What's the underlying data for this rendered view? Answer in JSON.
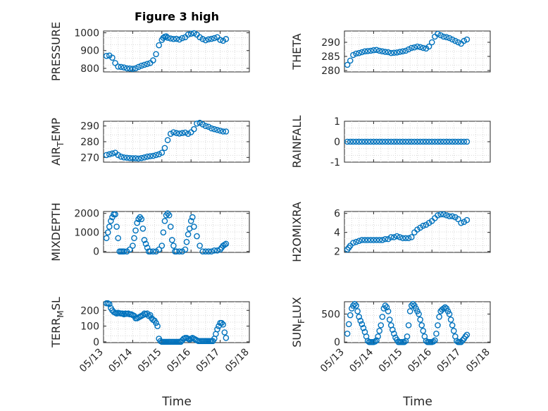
{
  "title": "Figure 3 high",
  "xlabel": "Time",
  "x_tick_labels": [
    "05/13",
    "05/14",
    "05/15",
    "05/16",
    "05/17",
    "05/18"
  ],
  "marker_color": "#0072BD",
  "chart_data": [
    {
      "type": "scatter",
      "ylabel": "PRESSURE",
      "ylabel_sub": null,
      "xlim": [
        0,
        5
      ],
      "ylim": [
        780,
        1010
      ],
      "yticks": [
        800,
        900,
        1000
      ],
      "ytick_labels": [
        "800",
        "900",
        "1000"
      ],
      "x": [
        0.1,
        0.2,
        0.3,
        0.4,
        0.5,
        0.6,
        0.7,
        0.8,
        0.9,
        1.0,
        1.1,
        1.2,
        1.3,
        1.4,
        1.5,
        1.6,
        1.7,
        1.8,
        1.9,
        2.0,
        2.05,
        2.1,
        2.15,
        2.2,
        2.3,
        2.4,
        2.5,
        2.6,
        2.7,
        2.8,
        2.9,
        3.0,
        3.1,
        3.2,
        3.3,
        3.4,
        3.5,
        3.6,
        3.7,
        3.8,
        3.9,
        4.0,
        4.1,
        4.2
      ],
      "y": [
        870,
        872,
        860,
        830,
        810,
        808,
        805,
        800,
        799,
        797,
        800,
        808,
        815,
        820,
        825,
        830,
        845,
        880,
        930,
        960,
        972,
        978,
        980,
        972,
        968,
        965,
        966,
        962,
        970,
        975,
        990,
        995,
        998,
        990,
        975,
        965,
        958,
        963,
        966,
        970,
        975,
        960,
        955,
        965
      ]
    },
    {
      "type": "scatter",
      "ylabel": "THETA",
      "ylabel_sub": null,
      "xlim": [
        0,
        5
      ],
      "ylim": [
        279.5,
        294
      ],
      "yticks": [
        280,
        285,
        290
      ],
      "ytick_labels": [
        "280",
        "285",
        "290"
      ],
      "x": [
        0.1,
        0.2,
        0.3,
        0.4,
        0.5,
        0.6,
        0.7,
        0.8,
        0.9,
        1.0,
        1.1,
        1.2,
        1.3,
        1.4,
        1.5,
        1.6,
        1.7,
        1.8,
        1.9,
        2.0,
        2.1,
        2.2,
        2.3,
        2.4,
        2.5,
        2.6,
        2.7,
        2.8,
        2.9,
        3.0,
        3.1,
        3.2,
        3.3,
        3.4,
        3.5,
        3.6,
        3.7,
        3.8,
        3.9,
        4.0,
        4.1,
        4.2
      ],
      "y": [
        282.0,
        283.5,
        285.5,
        286.0,
        286.2,
        286.5,
        286.8,
        286.9,
        287.0,
        287.2,
        287.3,
        287.0,
        286.8,
        286.6,
        286.5,
        286.2,
        286.3,
        286.4,
        286.6,
        286.8,
        287.0,
        287.5,
        288.0,
        288.2,
        288.5,
        288.3,
        288.0,
        287.8,
        288.5,
        290.0,
        292.0,
        293.0,
        292.5,
        292.0,
        291.8,
        291.5,
        291.0,
        290.5,
        290.0,
        289.5,
        290.5,
        291.0
      ]
    },
    {
      "type": "scatter",
      "ylabel": "AIR",
      "ylabel_sub": "T",
      "ylabel_suffix": "EMP",
      "xlim": [
        0,
        5
      ],
      "ylim": [
        267,
        293
      ],
      "yticks": [
        270,
        280,
        290
      ],
      "ytick_labels": [
        "270",
        "280",
        "290"
      ],
      "x": [
        0.1,
        0.2,
        0.3,
        0.4,
        0.5,
        0.6,
        0.7,
        0.8,
        0.9,
        1.0,
        1.1,
        1.2,
        1.3,
        1.4,
        1.5,
        1.6,
        1.7,
        1.8,
        1.9,
        2.0,
        2.1,
        2.2,
        2.3,
        2.4,
        2.5,
        2.6,
        2.7,
        2.8,
        2.9,
        3.0,
        3.1,
        3.2,
        3.3,
        3.4,
        3.5,
        3.6,
        3.7,
        3.8,
        3.9,
        4.0,
        4.1,
        4.2
      ],
      "y": [
        271.5,
        272.0,
        272.5,
        273.0,
        271.5,
        270.5,
        270.0,
        269.8,
        269.6,
        269.5,
        269.5,
        269.3,
        269.6,
        270.0,
        270.5,
        270.8,
        271.0,
        271.5,
        272.0,
        273.0,
        276.0,
        281.0,
        285.0,
        286.0,
        285.5,
        285.2,
        285.5,
        285.8,
        285.0,
        286.0,
        288.0,
        291.5,
        292.0,
        291.0,
        290.0,
        289.5,
        288.5,
        288.0,
        287.5,
        287.0,
        286.5,
        286.5
      ]
    },
    {
      "type": "scatter",
      "ylabel": "RAINFALL",
      "ylabel_sub": null,
      "xlim": [
        0,
        5
      ],
      "ylim": [
        -1,
        1
      ],
      "yticks": [
        -1,
        0,
        1
      ],
      "ytick_labels": [
        "-1",
        "0",
        "1"
      ],
      "x": [
        0.1,
        0.2,
        0.3,
        0.4,
        0.5,
        0.6,
        0.7,
        0.8,
        0.9,
        1.0,
        1.1,
        1.2,
        1.3,
        1.4,
        1.5,
        1.6,
        1.7,
        1.8,
        1.9,
        2.0,
        2.1,
        2.2,
        2.3,
        2.4,
        2.5,
        2.6,
        2.7,
        2.8,
        2.9,
        3.0,
        3.1,
        3.2,
        3.3,
        3.4,
        3.5,
        3.6,
        3.7,
        3.8,
        3.9,
        4.0,
        4.1,
        4.2
      ],
      "y": [
        0,
        0,
        0,
        0,
        0,
        0,
        0,
        0,
        0,
        0,
        0,
        0,
        0,
        0,
        0,
        0,
        0,
        0,
        0,
        0,
        0,
        0,
        0,
        0,
        0,
        0,
        0,
        0,
        0,
        0,
        0,
        0,
        0,
        0,
        0,
        0,
        0,
        0,
        0,
        0,
        0,
        0
      ]
    },
    {
      "type": "scatter",
      "ylabel": "MIXDEPTH",
      "ylabel_sub": null,
      "xlim": [
        0,
        5
      ],
      "ylim": [
        -50,
        2100
      ],
      "yticks": [
        0,
        1000,
        2000
      ],
      "ytick_labels": [
        "0",
        "1000",
        "2000"
      ],
      "x": [
        0.1,
        0.15,
        0.2,
        0.25,
        0.3,
        0.35,
        0.4,
        0.45,
        0.5,
        0.55,
        0.6,
        0.65,
        0.7,
        0.8,
        0.9,
        1.0,
        1.05,
        1.1,
        1.15,
        1.2,
        1.25,
        1.3,
        1.35,
        1.4,
        1.45,
        1.5,
        1.55,
        1.6,
        1.7,
        1.8,
        1.9,
        2.0,
        2.05,
        2.1,
        2.15,
        2.2,
        2.25,
        2.3,
        2.35,
        2.4,
        2.45,
        2.5,
        2.6,
        2.7,
        2.8,
        2.85,
        2.9,
        2.95,
        3.0,
        3.05,
        3.1,
        3.2,
        3.3,
        3.4,
        3.5,
        3.6,
        3.7,
        3.8,
        3.9,
        4.0,
        4.05,
        4.1,
        4.15,
        4.2
      ],
      "y": [
        700,
        1000,
        1300,
        1600,
        1800,
        1950,
        1950,
        1300,
        700,
        0,
        0,
        0,
        0,
        0,
        100,
        300,
        700,
        1100,
        1500,
        1700,
        1800,
        1700,
        1200,
        600,
        400,
        200,
        0,
        0,
        0,
        0,
        100,
        300,
        1000,
        1600,
        1900,
        2000,
        1900,
        1300,
        600,
        300,
        0,
        0,
        0,
        0,
        100,
        500,
        900,
        1200,
        1600,
        1800,
        1300,
        800,
        300,
        0,
        0,
        0,
        0,
        50,
        50,
        100,
        200,
        300,
        350,
        400
      ]
    },
    {
      "type": "scatter",
      "ylabel": "H2OMIXRA",
      "ylabel_sub": null,
      "xlim": [
        0,
        5
      ],
      "ylim": [
        1.9,
        6.2
      ],
      "yticks": [
        2,
        4,
        6
      ],
      "ytick_labels": [
        "2",
        "4",
        "6"
      ],
      "x": [
        0.1,
        0.15,
        0.2,
        0.3,
        0.4,
        0.5,
        0.6,
        0.7,
        0.8,
        0.9,
        1.0,
        1.1,
        1.2,
        1.3,
        1.4,
        1.5,
        1.6,
        1.7,
        1.8,
        1.9,
        2.0,
        2.1,
        2.2,
        2.3,
        2.4,
        2.5,
        2.6,
        2.7,
        2.8,
        2.9,
        3.0,
        3.1,
        3.2,
        3.3,
        3.4,
        3.5,
        3.6,
        3.7,
        3.8,
        3.9,
        4.0,
        4.1,
        4.2
      ],
      "y": [
        2.2,
        2.4,
        2.6,
        2.9,
        3.0,
        3.1,
        3.2,
        3.2,
        3.2,
        3.2,
        3.2,
        3.2,
        3.2,
        3.2,
        3.3,
        3.3,
        3.5,
        3.5,
        3.6,
        3.5,
        3.4,
        3.4,
        3.4,
        3.5,
        4.0,
        4.3,
        4.5,
        4.7,
        4.8,
        5.0,
        5.2,
        5.5,
        5.8,
        5.9,
        5.9,
        5.8,
        5.7,
        5.7,
        5.6,
        5.4,
        5.0,
        5.1,
        5.3
      ]
    },
    {
      "type": "scatter",
      "ylabel": "TERR",
      "ylabel_sub": "M",
      "ylabel_suffix": "SL",
      "xlim": [
        0,
        5
      ],
      "ylim": [
        -5,
        255
      ],
      "yticks": [
        0,
        100,
        200
      ],
      "ytick_labels": [
        "0",
        "100",
        "200"
      ],
      "x": [
        0.1,
        0.15,
        0.2,
        0.25,
        0.3,
        0.35,
        0.4,
        0.45,
        0.5,
        0.55,
        0.6,
        0.65,
        0.7,
        0.75,
        0.8,
        0.85,
        0.9,
        0.95,
        1.0,
        1.05,
        1.1,
        1.15,
        1.2,
        1.25,
        1.3,
        1.35,
        1.4,
        1.45,
        1.5,
        1.55,
        1.6,
        1.65,
        1.7,
        1.75,
        1.8,
        1.85,
        1.9,
        1.95,
        2.0,
        2.05,
        2.1,
        2.15,
        2.2,
        2.25,
        2.3,
        2.35,
        2.4,
        2.45,
        2.5,
        2.55,
        2.6,
        2.65,
        2.7,
        2.75,
        2.8,
        2.85,
        2.9,
        2.95,
        3.0,
        3.05,
        3.1,
        3.15,
        3.2,
        3.25,
        3.3,
        3.35,
        3.4,
        3.45,
        3.5,
        3.55,
        3.6,
        3.65,
        3.7,
        3.75,
        3.8,
        3.85,
        3.9,
        3.95,
        4.0,
        4.05,
        4.1,
        4.15,
        4.2
      ],
      "y": [
        245,
        245,
        240,
        215,
        200,
        190,
        185,
        180,
        185,
        182,
        180,
        180,
        175,
        180,
        178,
        180,
        175,
        175,
        170,
        165,
        150,
        150,
        155,
        160,
        165,
        170,
        180,
        175,
        180,
        165,
        170,
        150,
        140,
        135,
        120,
        100,
        20,
        5,
        0,
        0,
        0,
        0,
        0,
        0,
        0,
        0,
        0,
        0,
        0,
        0,
        0,
        0,
        10,
        20,
        25,
        25,
        20,
        15,
        20,
        25,
        20,
        15,
        10,
        5,
        5,
        5,
        5,
        5,
        5,
        5,
        5,
        5,
        5,
        5,
        20,
        50,
        80,
        100,
        120,
        120,
        110,
        60,
        25
      ]
    },
    {
      "type": "scatter",
      "ylabel": "SUN",
      "ylabel_sub": "F",
      "ylabel_suffix": "LUX",
      "xlim": [
        0,
        5
      ],
      "ylim": [
        -10,
        720
      ],
      "yticks": [
        0,
        500
      ],
      "ytick_labels": [
        "0",
        "500"
      ],
      "x": [
        0.1,
        0.15,
        0.2,
        0.25,
        0.3,
        0.35,
        0.4,
        0.45,
        0.5,
        0.55,
        0.6,
        0.65,
        0.7,
        0.75,
        0.8,
        0.85,
        0.9,
        0.95,
        1.0,
        1.05,
        1.1,
        1.15,
        1.2,
        1.25,
        1.3,
        1.35,
        1.4,
        1.45,
        1.5,
        1.55,
        1.6,
        1.65,
        1.7,
        1.75,
        1.8,
        1.85,
        1.9,
        1.95,
        2.0,
        2.05,
        2.1,
        2.15,
        2.2,
        2.25,
        2.3,
        2.35,
        2.4,
        2.45,
        2.5,
        2.55,
        2.6,
        2.65,
        2.7,
        2.75,
        2.8,
        2.85,
        2.9,
        2.95,
        3.0,
        3.05,
        3.1,
        3.15,
        3.2,
        3.25,
        3.3,
        3.35,
        3.4,
        3.45,
        3.5,
        3.55,
        3.6,
        3.65,
        3.7,
        3.75,
        3.8,
        3.85,
        3.9,
        3.95,
        4.0,
        4.05,
        4.1,
        4.15,
        4.2
      ],
      "y": [
        150,
        320,
        480,
        600,
        650,
        680,
        650,
        550,
        450,
        380,
        320,
        250,
        180,
        100,
        20,
        0,
        0,
        0,
        0,
        10,
        30,
        100,
        200,
        300,
        450,
        600,
        650,
        620,
        550,
        400,
        300,
        220,
        150,
        80,
        40,
        0,
        0,
        0,
        0,
        0,
        20,
        100,
        300,
        550,
        650,
        680,
        650,
        600,
        550,
        500,
        400,
        300,
        200,
        100,
        20,
        0,
        0,
        0,
        0,
        10,
        30,
        150,
        300,
        450,
        550,
        580,
        600,
        620,
        600,
        550,
        500,
        400,
        300,
        200,
        100,
        20,
        0,
        0,
        0,
        30,
        60,
        100,
        130
      ]
    }
  ]
}
